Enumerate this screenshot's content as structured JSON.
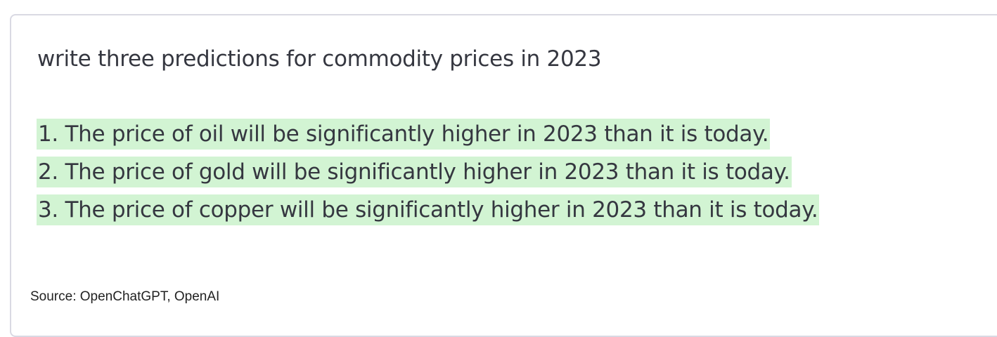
{
  "playground": {
    "prompt": "write three predictions for commodity prices in 2023",
    "completion_lines": [
      "1. The price of oil will be significantly higher in 2023 than it is today.",
      "2. The price of gold will be significantly higher in 2023 than it is today.",
      "3. The price of copper will be significantly higher in 2023 than it is today."
    ]
  },
  "caption": {
    "source": "Source: OpenChatGPT, OpenAI"
  },
  "colors": {
    "highlight": "#d2f4d3",
    "border": "#d9d9e3",
    "text": "#353740"
  }
}
